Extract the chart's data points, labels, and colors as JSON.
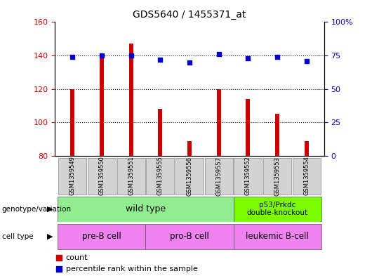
{
  "title": "GDS5640 / 1455371_at",
  "samples": [
    "GSM1359549",
    "GSM1359550",
    "GSM1359551",
    "GSM1359555",
    "GSM1359556",
    "GSM1359557",
    "GSM1359552",
    "GSM1359553",
    "GSM1359554"
  ],
  "counts": [
    120,
    140,
    147,
    108,
    89,
    120,
    114,
    105,
    89
  ],
  "percentiles": [
    74,
    75,
    75,
    72,
    70,
    76,
    73,
    74,
    71
  ],
  "ylim_left": [
    80,
    160
  ],
  "ylim_right": [
    0,
    100
  ],
  "yticks_left": [
    80,
    100,
    120,
    140,
    160
  ],
  "yticks_right": [
    0,
    25,
    50,
    75,
    100
  ],
  "bar_color": "#cc0000",
  "dot_color": "#0000cc",
  "bar_width": 0.15,
  "tick_color_left": "#cc0000",
  "tick_color_right": "#0000cc",
  "grid_yticks": [
    100,
    120,
    140
  ],
  "wt_color": "#90ee90",
  "ko_color": "#7cfc00",
  "cell_color": "#ee82ee",
  "sample_box_color": "#d3d3d3",
  "legend_count_color": "#cc0000",
  "legend_pct_color": "#0000cc"
}
